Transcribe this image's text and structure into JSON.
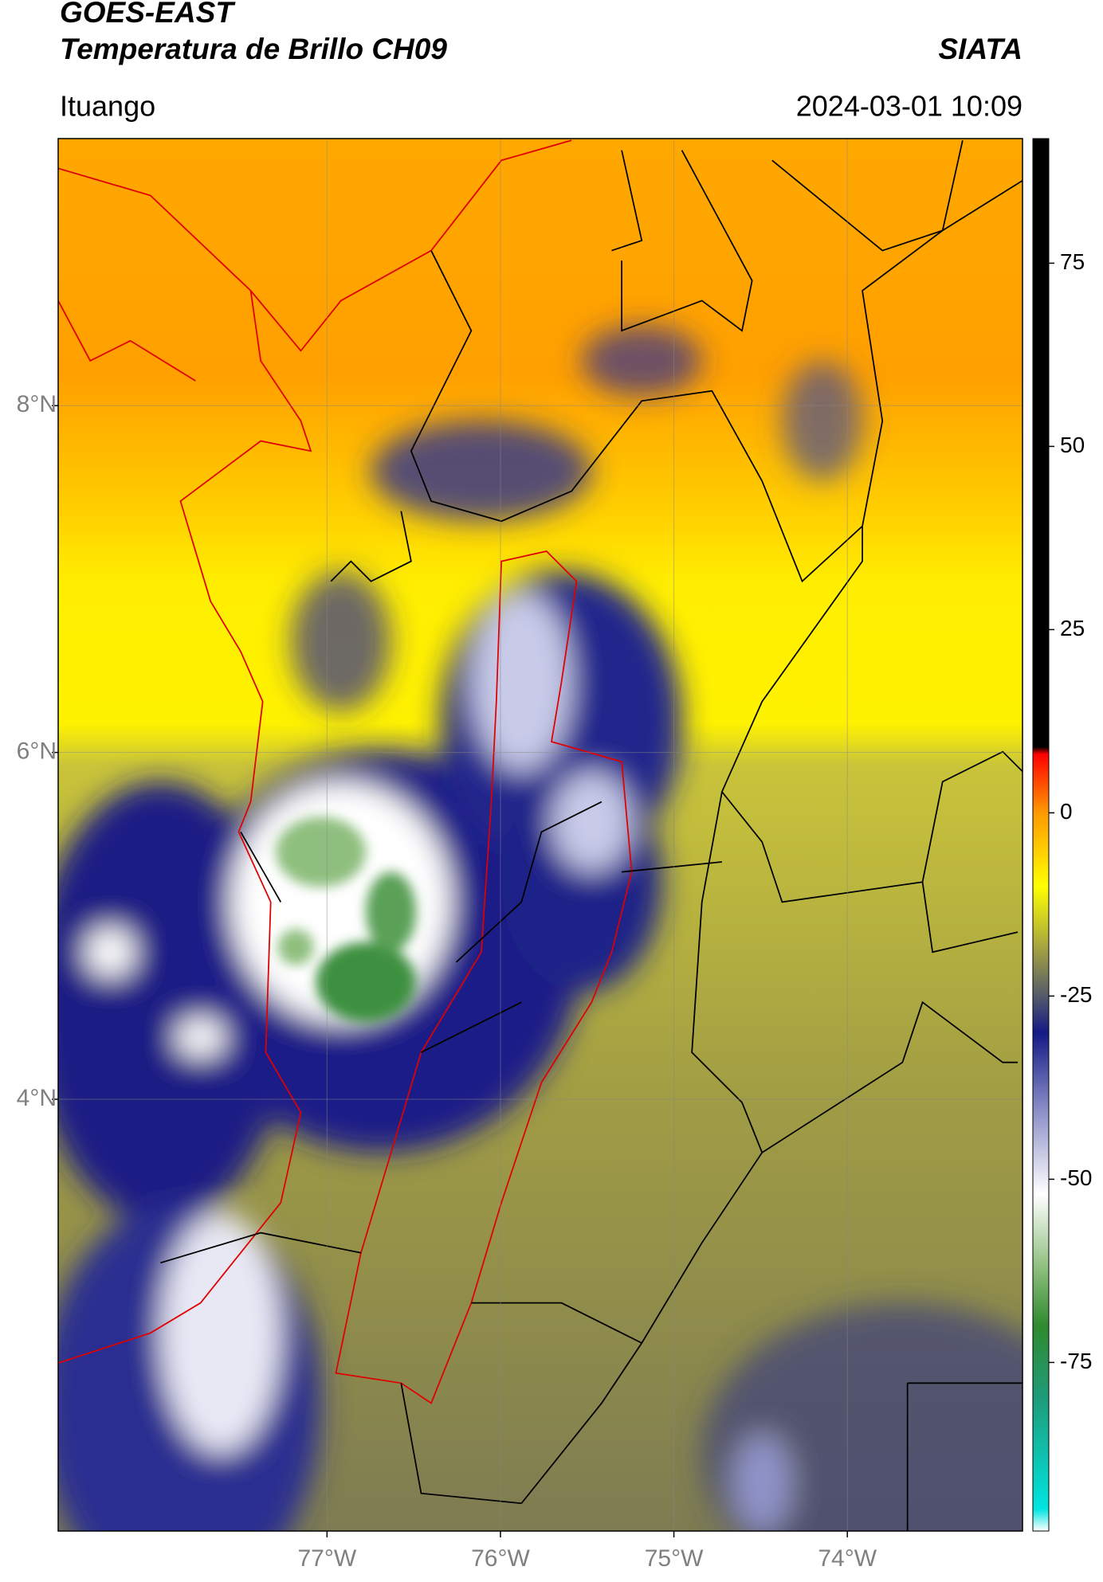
{
  "chart_data": {
    "type": "map",
    "title": "GOES-EAST",
    "subtitle": "Temperatura de Brillo CH09",
    "source": "SIATA",
    "region": "Ituango",
    "timestamp": "2024-03-01 10:09",
    "xlim": [
      -78.55,
      -72.99
    ],
    "ylim": [
      1.51,
      9.54
    ],
    "xticks": [
      {
        "value": -77,
        "label": "77°W"
      },
      {
        "value": -76,
        "label": "76°W"
      },
      {
        "value": -75,
        "label": "75°W"
      },
      {
        "value": -74,
        "label": "74°W"
      }
    ],
    "yticks": [
      {
        "value": 8,
        "label": "8°N"
      },
      {
        "value": 6,
        "label": "6°N"
      },
      {
        "value": 4,
        "label": "4°N"
      }
    ],
    "grid": true,
    "clim": [
      -98,
      92
    ],
    "cticks": [
      75,
      50,
      25,
      0,
      -25,
      -50,
      -75
    ],
    "colormap": [
      {
        "value": -98,
        "color": "#ffffff"
      },
      {
        "value": -95,
        "color": "#00e5e0"
      },
      {
        "value": -80,
        "color": "#1e9c7a"
      },
      {
        "value": -70,
        "color": "#2f8a2f"
      },
      {
        "value": -62,
        "color": "#8fbf7f"
      },
      {
        "value": -52,
        "color": "#ffffff"
      },
      {
        "value": -40,
        "color": "#8488c4"
      },
      {
        "value": -30,
        "color": "#141a86"
      },
      {
        "value": -25,
        "color": "#555a6a"
      },
      {
        "value": -18,
        "color": "#a9a83e"
      },
      {
        "value": -10,
        "color": "#ffff00"
      },
      {
        "value": 0,
        "color": "#ff9a00"
      },
      {
        "value": 8,
        "color": "#ff0000"
      },
      {
        "value": 9,
        "color": "#000000"
      },
      {
        "value": 92,
        "color": "#000000"
      }
    ]
  }
}
